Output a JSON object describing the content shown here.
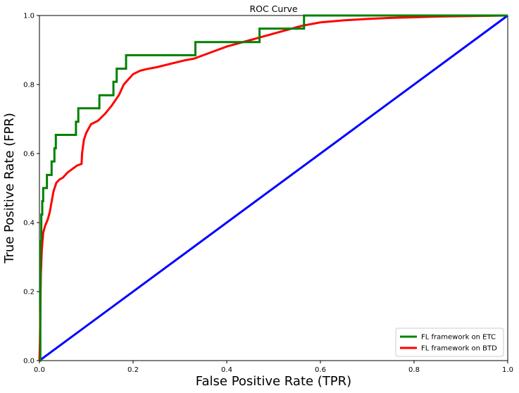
{
  "chart_data": {
    "type": "line",
    "title": "ROC Curve",
    "xlabel": "False Positive Rate (TPR)",
    "ylabel": "True Positive Rate (FPR)",
    "xlim": [
      0,
      1
    ],
    "ylim": [
      0,
      1
    ],
    "xticks": [
      "0.0",
      "0.2",
      "0.4",
      "0.6",
      "0.8",
      "1.0"
    ],
    "yticks": [
      "0.0",
      "0.2",
      "0.4",
      "0.6",
      "0.8",
      "1.0"
    ],
    "grid": false,
    "legend": "lower-right",
    "series": [
      {
        "name": "FL framework on ETC",
        "color": "#008000",
        "x": [
          0.0,
          0.002,
          0.002,
          0.004,
          0.004,
          0.006,
          0.006,
          0.008,
          0.008,
          0.016,
          0.016,
          0.026,
          0.026,
          0.032,
          0.032,
          0.035,
          0.035,
          0.078,
          0.078,
          0.083,
          0.083,
          0.128,
          0.128,
          0.158,
          0.158,
          0.165,
          0.165,
          0.185,
          0.185,
          0.333,
          0.333,
          0.47,
          0.47,
          0.565,
          0.565,
          1.0
        ],
        "y": [
          0.0,
          0.0,
          0.346,
          0.346,
          0.423,
          0.423,
          0.462,
          0.462,
          0.5,
          0.5,
          0.538,
          0.538,
          0.577,
          0.577,
          0.615,
          0.615,
          0.654,
          0.654,
          0.692,
          0.692,
          0.731,
          0.731,
          0.769,
          0.769,
          0.808,
          0.808,
          0.846,
          0.846,
          0.885,
          0.885,
          0.923,
          0.923,
          0.962,
          0.962,
          1.0,
          1.0
        ]
      },
      {
        "name": "FL framework on BTD",
        "color": "#ff0000",
        "x": [
          0.0,
          0.001,
          0.002,
          0.003,
          0.005,
          0.008,
          0.012,
          0.018,
          0.022,
          0.026,
          0.03,
          0.036,
          0.043,
          0.05,
          0.06,
          0.07,
          0.08,
          0.09,
          0.091,
          0.095,
          0.1,
          0.11,
          0.125,
          0.14,
          0.155,
          0.17,
          0.18,
          0.19,
          0.2,
          0.215,
          0.23,
          0.25,
          0.28,
          0.31,
          0.33,
          0.36,
          0.4,
          0.44,
          0.48,
          0.52,
          0.56,
          0.6,
          0.65,
          0.7,
          0.75,
          0.8,
          0.85,
          0.9,
          0.95,
          1.0
        ],
        "y": [
          0.0,
          0.05,
          0.15,
          0.25,
          0.32,
          0.37,
          0.39,
          0.41,
          0.43,
          0.46,
          0.49,
          0.515,
          0.525,
          0.53,
          0.545,
          0.555,
          0.565,
          0.57,
          0.6,
          0.64,
          0.66,
          0.685,
          0.695,
          0.715,
          0.74,
          0.77,
          0.8,
          0.815,
          0.83,
          0.84,
          0.845,
          0.85,
          0.86,
          0.87,
          0.875,
          0.89,
          0.91,
          0.925,
          0.94,
          0.955,
          0.97,
          0.98,
          0.986,
          0.99,
          0.993,
          0.995,
          0.997,
          0.998,
          0.999,
          1.0
        ]
      },
      {
        "name": "",
        "color": "#0000ff",
        "x": [
          0,
          1
        ],
        "y": [
          0,
          1
        ]
      }
    ]
  }
}
